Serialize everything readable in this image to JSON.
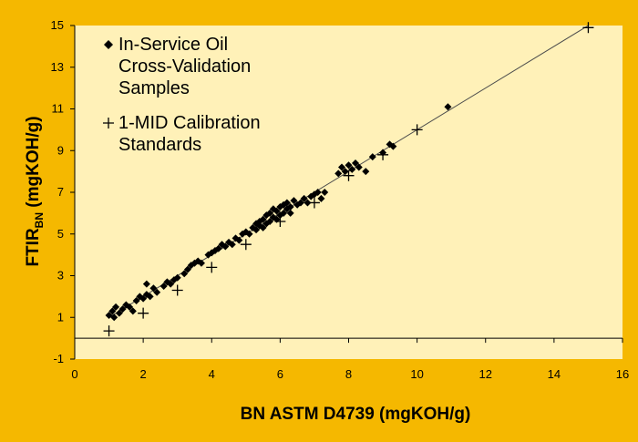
{
  "colors": {
    "frame": "#F5B800",
    "plot_area": "#FFF1B8",
    "marker": "#000000",
    "trend_line": "#4D4D4D"
  },
  "chart_data": {
    "type": "scatter",
    "title": "",
    "xlabel": "BN ASTM D4739 (mgKOH/g)",
    "ylabel_main": "FTIR",
    "ylabel_subscript": "BN",
    "ylabel_suffix": " (mgKOH/g)",
    "xlim": [
      0,
      16
    ],
    "ylim": [
      -1,
      15
    ],
    "xticks": [
      0,
      2,
      4,
      6,
      8,
      10,
      12,
      14,
      16
    ],
    "yticks": [
      -1,
      1,
      3,
      5,
      7,
      9,
      11,
      13,
      15
    ],
    "grid": false,
    "legend_position": "top-left",
    "trend_line": {
      "x": [
        1,
        15
      ],
      "y": [
        1.0,
        15.0
      ]
    },
    "series": [
      {
        "name": "In-Service Oil Cross-Validation Samples",
        "marker": "diamond",
        "points": [
          [
            1.0,
            1.1
          ],
          [
            1.1,
            1.3
          ],
          [
            1.15,
            1.0
          ],
          [
            1.2,
            1.5
          ],
          [
            1.3,
            1.2
          ],
          [
            1.4,
            1.4
          ],
          [
            1.5,
            1.6
          ],
          [
            1.6,
            1.5
          ],
          [
            1.7,
            1.3
          ],
          [
            1.8,
            1.8
          ],
          [
            1.9,
            2.0
          ],
          [
            2.0,
            1.9
          ],
          [
            2.1,
            2.1
          ],
          [
            2.1,
            2.6
          ],
          [
            2.2,
            2.0
          ],
          [
            2.3,
            2.4
          ],
          [
            2.4,
            2.2
          ],
          [
            2.6,
            2.5
          ],
          [
            2.7,
            2.7
          ],
          [
            2.8,
            2.6
          ],
          [
            2.9,
            2.8
          ],
          [
            3.0,
            2.9
          ],
          [
            3.2,
            3.1
          ],
          [
            3.3,
            3.3
          ],
          [
            3.4,
            3.5
          ],
          [
            3.5,
            3.6
          ],
          [
            3.6,
            3.7
          ],
          [
            3.7,
            3.6
          ],
          [
            3.9,
            4.0
          ],
          [
            4.0,
            4.1
          ],
          [
            4.1,
            4.2
          ],
          [
            4.2,
            4.3
          ],
          [
            4.3,
            4.5
          ],
          [
            4.4,
            4.4
          ],
          [
            4.5,
            4.6
          ],
          [
            4.6,
            4.5
          ],
          [
            4.7,
            4.8
          ],
          [
            4.8,
            4.7
          ],
          [
            4.9,
            5.0
          ],
          [
            5.0,
            5.1
          ],
          [
            5.1,
            5.0
          ],
          [
            5.2,
            5.3
          ],
          [
            5.3,
            5.5
          ],
          [
            5.3,
            5.2
          ],
          [
            5.4,
            5.6
          ],
          [
            5.4,
            5.4
          ],
          [
            5.5,
            5.7
          ],
          [
            5.5,
            5.3
          ],
          [
            5.6,
            5.9
          ],
          [
            5.6,
            5.5
          ],
          [
            5.7,
            6.0
          ],
          [
            5.7,
            5.6
          ],
          [
            5.8,
            6.2
          ],
          [
            5.8,
            5.8
          ],
          [
            5.9,
            6.1
          ],
          [
            5.9,
            5.7
          ],
          [
            6.0,
            6.3
          ],
          [
            6.0,
            5.9
          ],
          [
            6.1,
            6.4
          ],
          [
            6.1,
            6.0
          ],
          [
            6.2,
            6.2
          ],
          [
            6.2,
            6.5
          ],
          [
            6.3,
            6.3
          ],
          [
            6.3,
            6.0
          ],
          [
            6.4,
            6.6
          ],
          [
            6.5,
            6.4
          ],
          [
            6.6,
            6.5
          ],
          [
            6.7,
            6.7
          ],
          [
            6.8,
            6.5
          ],
          [
            6.9,
            6.8
          ],
          [
            7.0,
            6.9
          ],
          [
            7.1,
            7.0
          ],
          [
            7.2,
            6.7
          ],
          [
            7.3,
            7.0
          ],
          [
            7.7,
            7.9
          ],
          [
            7.8,
            8.2
          ],
          [
            7.9,
            8.0
          ],
          [
            8.0,
            8.3
          ],
          [
            8.1,
            8.1
          ],
          [
            8.2,
            8.4
          ],
          [
            8.3,
            8.2
          ],
          [
            8.5,
            8.0
          ],
          [
            8.7,
            8.7
          ],
          [
            9.0,
            8.9
          ],
          [
            9.2,
            9.3
          ],
          [
            9.3,
            9.2
          ],
          [
            10.9,
            11.1
          ]
        ]
      },
      {
        "name": "1-MID Calibration Standards",
        "marker": "plus",
        "points": [
          [
            1.0,
            0.35
          ],
          [
            2.0,
            1.2
          ],
          [
            3.0,
            2.3
          ],
          [
            4.0,
            3.4
          ],
          [
            5.0,
            4.5
          ],
          [
            6.0,
            5.6
          ],
          [
            7.0,
            6.5
          ],
          [
            8.0,
            7.8
          ],
          [
            9.0,
            8.8
          ],
          [
            10.0,
            10.0
          ],
          [
            15.0,
            14.9
          ]
        ]
      }
    ],
    "legend": [
      {
        "marker": "diamond",
        "lines": [
          "In-Service Oil",
          "Cross-Validation",
          "Samples"
        ]
      },
      {
        "marker": "plus",
        "lines": [
          "1-MID Calibration",
          "Standards"
        ]
      }
    ]
  }
}
